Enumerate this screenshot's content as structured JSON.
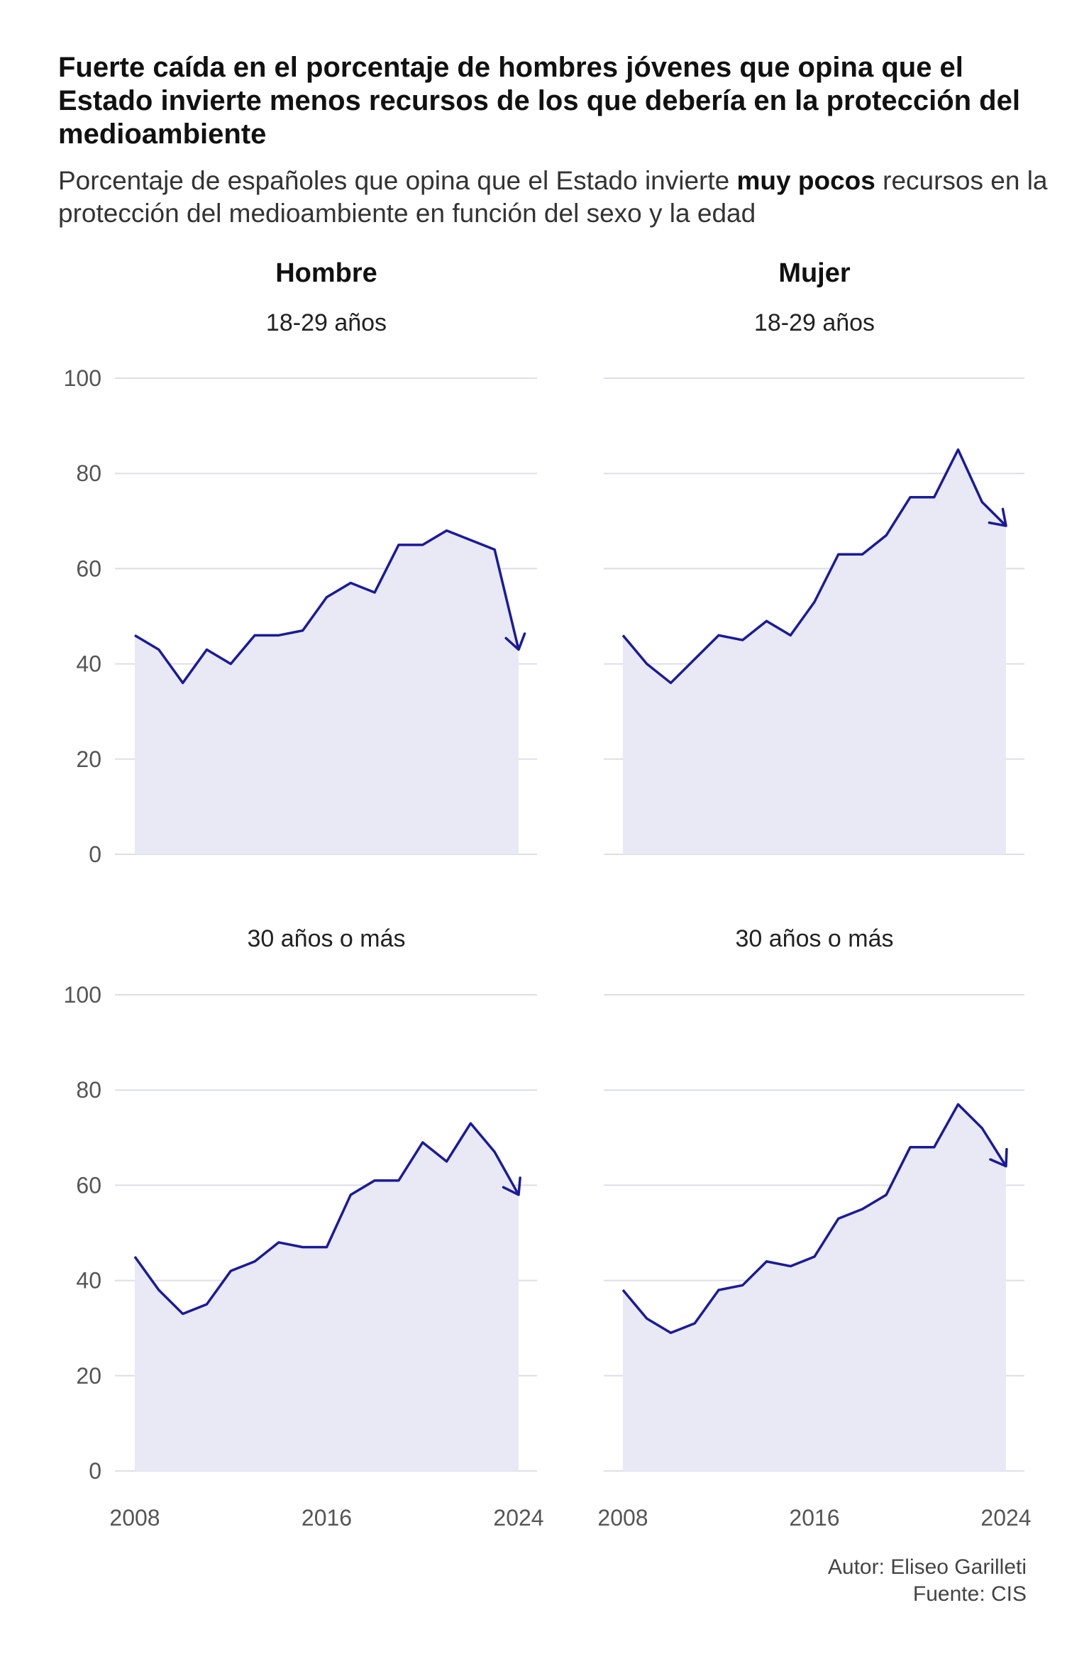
{
  "title": "Fuerte caída en el porcentaje de hombres jóvenes que opina que el Estado invierte menos recursos de los que debería en la protección del medioambiente",
  "subtitle": {
    "before": "Porcentaje de españoles que opina que el Estado invierte ",
    "bold": "muy pocos",
    "after": " recursos en la protección del medioambiente en función del sexo y la edad"
  },
  "footer": {
    "author": "Autor: Eliseo Garilleti",
    "source": "Fuente: CIS"
  },
  "colors": {
    "line": "#1a1a9c",
    "area": "#e9e9f5",
    "grid": "#dedee8"
  },
  "chart_data": {
    "type": "area",
    "columns": [
      "Hombre",
      "Mujer"
    ],
    "rows": [
      "18-29 años",
      "30 años o más"
    ],
    "x": [
      2008,
      2009,
      2010,
      2011,
      2012,
      2013,
      2014,
      2015,
      2016,
      2017,
      2018,
      2019,
      2020,
      2021,
      2022,
      2023,
      2024
    ],
    "xticks": [
      "2008",
      "2016",
      "2024"
    ],
    "xlim": [
      2008,
      2024
    ],
    "yticks": [
      "0",
      "20",
      "40",
      "60",
      "80",
      "100"
    ],
    "ylim": [
      0,
      100
    ],
    "grid": true,
    "panels": [
      {
        "column": "Hombre",
        "row": "18-29 años",
        "values": [
          46,
          43,
          36,
          43,
          40,
          46,
          46,
          47,
          54,
          57,
          55,
          65,
          65,
          68,
          66,
          64,
          43
        ]
      },
      {
        "column": "Mujer",
        "row": "18-29 años",
        "values": [
          46,
          40,
          36,
          41,
          46,
          45,
          49,
          46,
          53,
          63,
          63,
          67,
          75,
          75,
          85,
          74,
          69
        ]
      },
      {
        "column": "Hombre",
        "row": "30 años o más",
        "values": [
          45,
          38,
          33,
          35,
          42,
          44,
          48,
          47,
          47,
          58,
          61,
          61,
          69,
          65,
          73,
          67,
          58
        ]
      },
      {
        "column": "Mujer",
        "row": "30 años o más",
        "values": [
          38,
          32,
          29,
          31,
          38,
          39,
          44,
          43,
          45,
          53,
          55,
          58,
          68,
          68,
          77,
          72,
          64
        ]
      }
    ]
  }
}
